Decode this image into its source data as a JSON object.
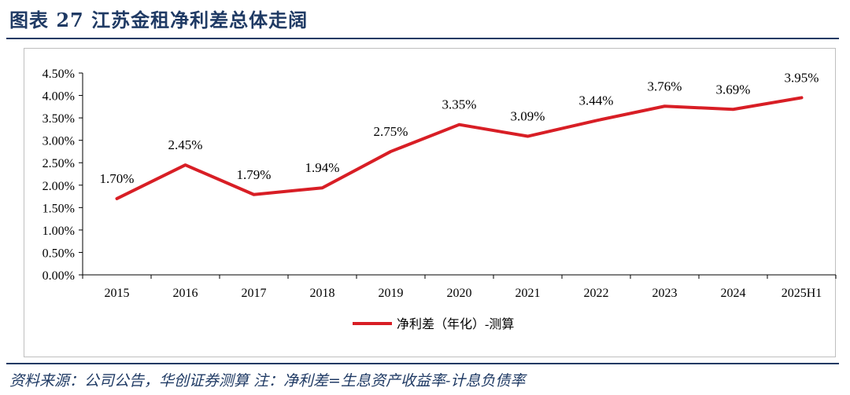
{
  "header": {
    "title": "图表 27    江苏金租净利差总体走阔"
  },
  "footer": {
    "source": "资料来源：公司公告，华创证券测算 注：净利差=生息资产收益率-计息负债率"
  },
  "colors": {
    "series": "#d81e25",
    "brand": "#1f3a64"
  },
  "chart_data": {
    "type": "line",
    "title": "",
    "xlabel": "",
    "ylabel": "",
    "categories": [
      "2015",
      "2016",
      "2017",
      "2018",
      "2019",
      "2020",
      "2021",
      "2022",
      "2023",
      "2024",
      "2025H1"
    ],
    "ylim": [
      0,
      4.5
    ],
    "yticks": [
      "0.00%",
      "0.50%",
      "1.00%",
      "1.50%",
      "2.00%",
      "2.50%",
      "3.00%",
      "3.50%",
      "4.00%",
      "4.50%"
    ],
    "grid": false,
    "legend_position": "bottom",
    "series": [
      {
        "name": "净利差（年化）-测算",
        "values": [
          1.7,
          2.45,
          1.79,
          1.94,
          2.75,
          3.35,
          3.09,
          3.44,
          3.76,
          3.69,
          3.95
        ],
        "labels": [
          "1.70%",
          "2.45%",
          "1.79%",
          "1.94%",
          "2.75%",
          "3.35%",
          "3.09%",
          "3.44%",
          "3.76%",
          "3.69%",
          "3.95%"
        ]
      }
    ]
  }
}
